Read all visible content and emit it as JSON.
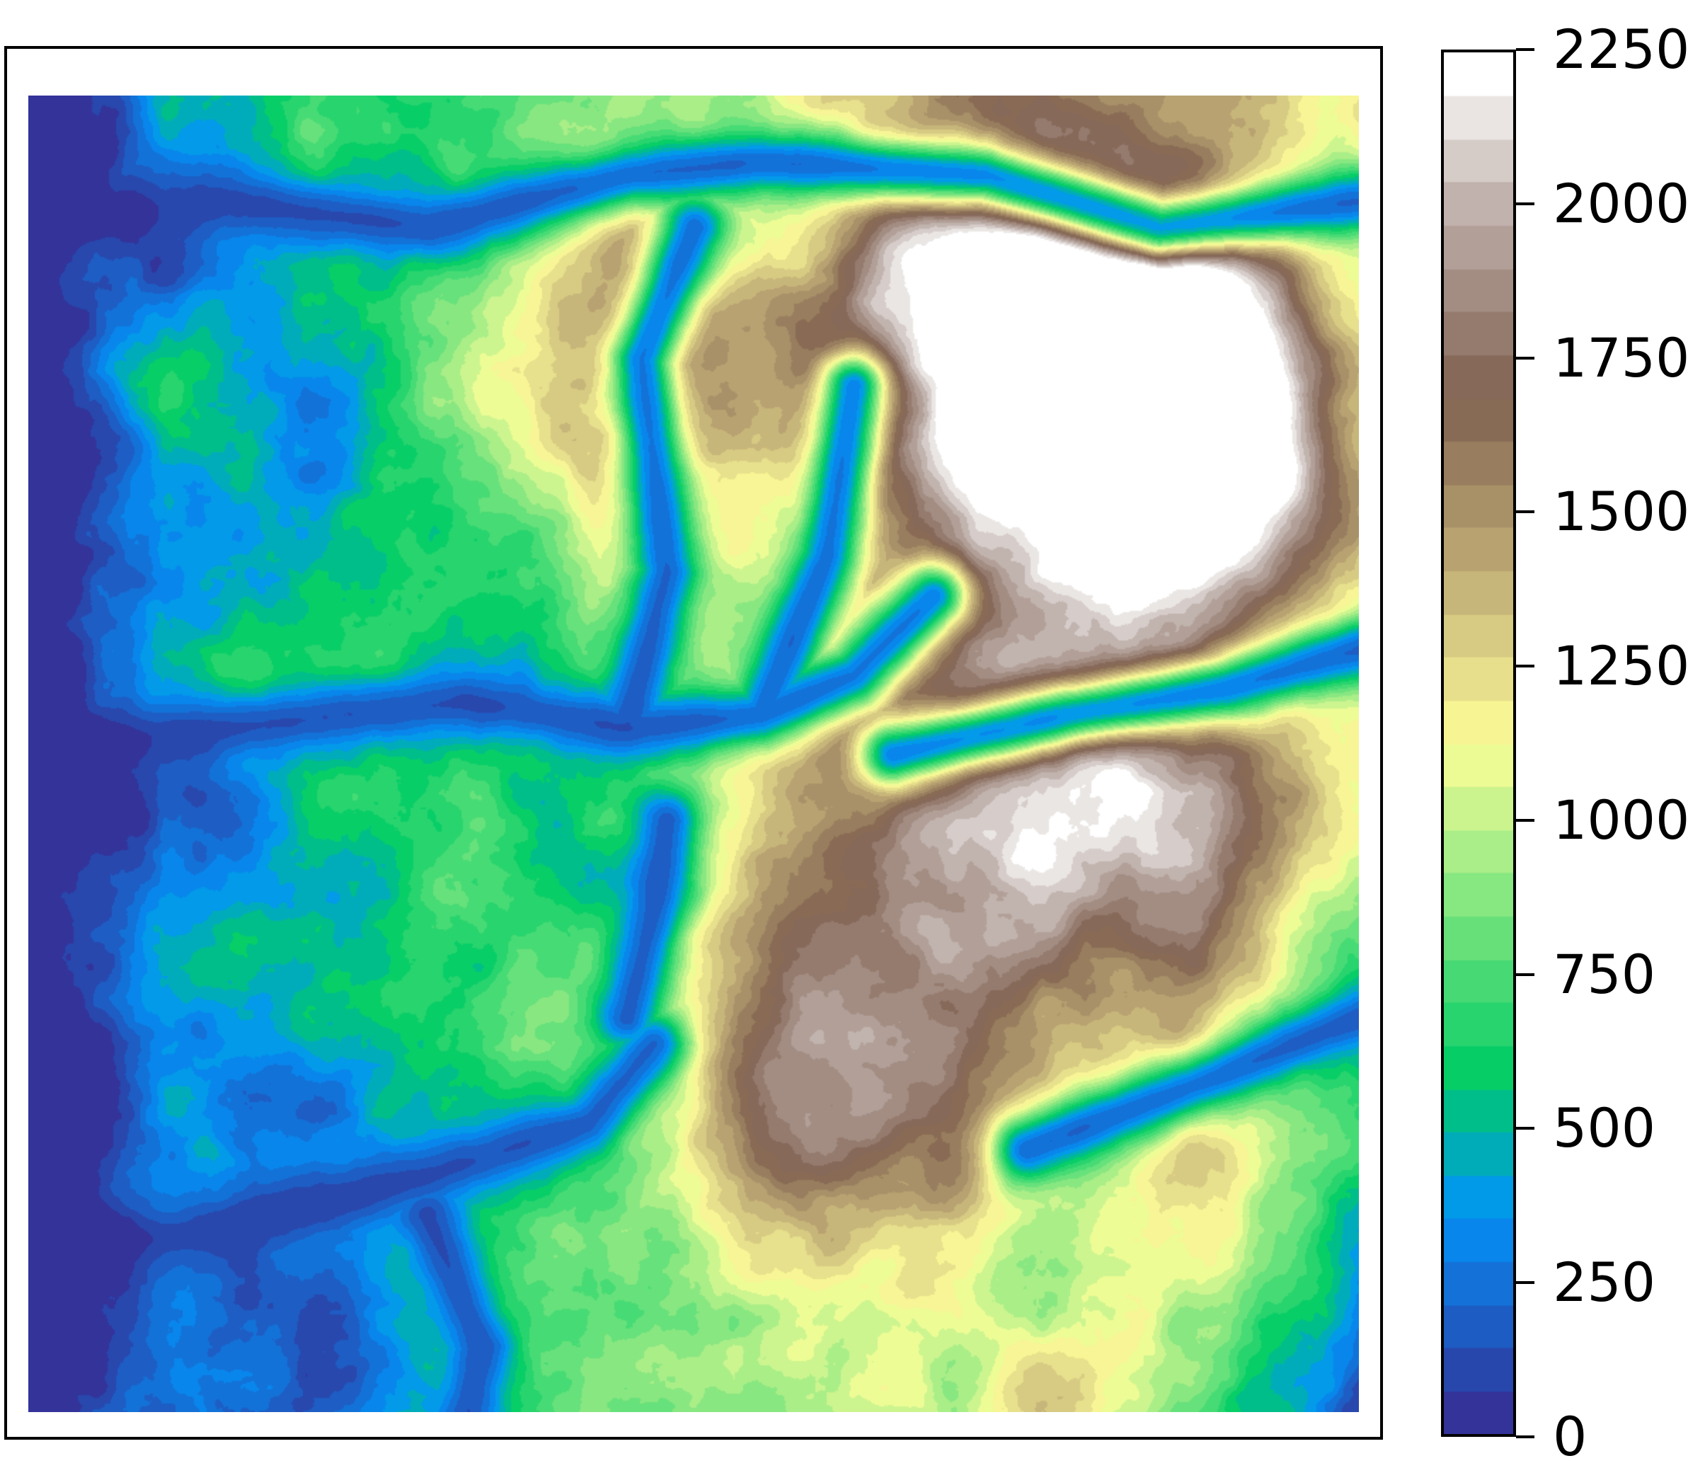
{
  "chart_data": {
    "type": "heatmap",
    "title": "",
    "xlabel": "",
    "ylabel": "",
    "colormap": "terrain",
    "colorbar": {
      "min": 0,
      "max": 2250,
      "ticks": [
        "0",
        "250",
        "500",
        "750",
        "1000",
        "1250",
        "1500",
        "1750",
        "2000",
        "2250"
      ],
      "levels": 32,
      "position": "right"
    },
    "summary": {
      "lowlands": "west and southwest (blue/green, ~0–500)",
      "highlands": "northeast (brown/white, ~1500–2250)",
      "valleys": "branching low-elevation channels running west to east",
      "east_edge": "green lowland plain (~600–900)"
    }
  },
  "colors": {
    "terrain_stops": [
      "#333399",
      "#0294FA",
      "#00CC66",
      "#80E680",
      "#FFFF99",
      "#BFAB75",
      "#806150",
      "#BFB0AB",
      "#FFFFFF"
    ]
  }
}
